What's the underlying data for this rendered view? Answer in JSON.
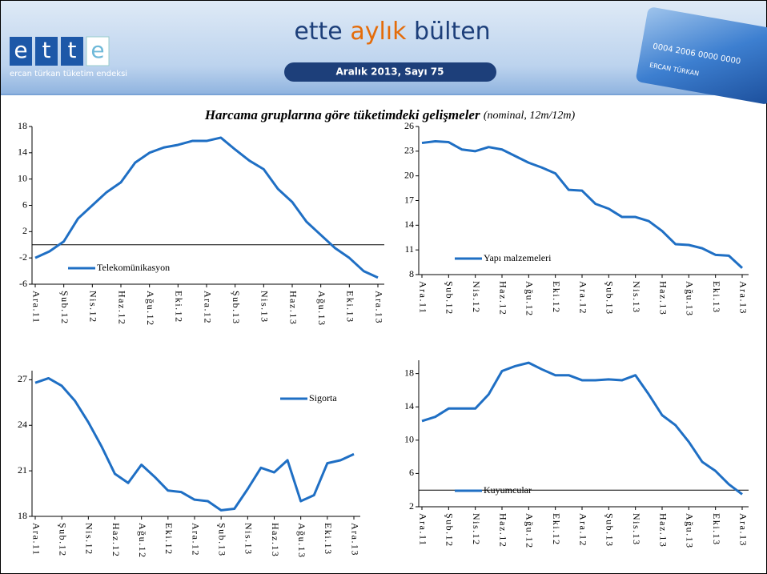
{
  "header": {
    "logo_letters": [
      "e",
      "t",
      "t",
      "e"
    ],
    "logo_caption": "ercan türkan tüketim endeksi",
    "title_parts": [
      "ette",
      "aylık",
      "bülten"
    ],
    "issue": "Aralık 2013, Sayı 75",
    "card_number": "0004 2006 0000 0000",
    "card_name": "ERCAN TÜRKAN"
  },
  "title": "Harcama gruplarına göre tüketimdeki gelişmeler",
  "subtitle": "(nominal, 12m/12m)",
  "chart_data": [
    {
      "type": "line",
      "legend": "lower left",
      "hline": 0,
      "categories": [
        "Ara.11",
        null,
        "Şub.12",
        null,
        "Nis.12",
        null,
        "Haz.12",
        null,
        "Ağu.12",
        null,
        "Eki.12",
        null,
        "Ara.12",
        null,
        "Şub.13",
        null,
        "Nis.13",
        null,
        "Haz.13",
        null,
        "Ağu.13",
        null,
        "Eki.13",
        null,
        "Ara.13"
      ],
      "series": [
        {
          "name": "Telekomünikasyon",
          "color": "#1f6fc4",
          "values": [
            -2,
            -1,
            0.5,
            4,
            6,
            8,
            9.5,
            12.5,
            14,
            14.8,
            15.2,
            15.8,
            15.8,
            16.3,
            14.5,
            12.8,
            11.5,
            8.5,
            6.5,
            3.5,
            1.5,
            -0.5,
            -2,
            -4,
            -5
          ]
        }
      ],
      "ylim": [
        -6,
        18
      ],
      "yticks": [
        -6,
        -2,
        2,
        6,
        10,
        14,
        18
      ]
    },
    {
      "type": "line",
      "legend": "lower left",
      "categories": [
        "Ara.11",
        null,
        "Şub.12",
        null,
        "Nis.12",
        null,
        "Haz.12",
        null,
        "Ağu.12",
        null,
        "Eki.12",
        null,
        "Ara.12",
        null,
        "Şub.13",
        null,
        "Nis.13",
        null,
        "Haz.13",
        null,
        "Ağu.13",
        null,
        "Eki.13",
        null,
        "Ara.13"
      ],
      "series": [
        {
          "name": "Yapı malzemeleri",
          "color": "#1f6fc4",
          "values": [
            24,
            24.2,
            24.1,
            23.2,
            23,
            23.5,
            23.2,
            22.4,
            21.6,
            21,
            20.3,
            18.3,
            18.2,
            16.6,
            16,
            15,
            15,
            14.5,
            13.3,
            11.7,
            11.6,
            11.2,
            10.4,
            10.3,
            8.8
          ]
        }
      ],
      "ylim": [
        8,
        26
      ],
      "yticks": [
        8,
        11,
        14,
        17,
        20,
        23,
        26
      ]
    },
    {
      "type": "line",
      "legend": "upper right",
      "categories": [
        "Ara.11",
        null,
        "Şub.12",
        null,
        "Nis.12",
        null,
        "Haz.12",
        null,
        "Ağu.12",
        null,
        "Eki.12",
        null,
        "Ara.12",
        null,
        "Şub.13",
        null,
        "Nis.13",
        null,
        "Haz.13",
        null,
        "Ağu.13",
        null,
        "Eki.13",
        null,
        "Ara.13"
      ],
      "series": [
        {
          "name": "Sigorta",
          "color": "#1f6fc4",
          "values": [
            26.8,
            27.1,
            26.6,
            25.6,
            24.2,
            22.6,
            20.8,
            20.2,
            21.4,
            20.6,
            19.7,
            19.6,
            19.1,
            19.0,
            18.4,
            18.5,
            19.8,
            21.2,
            20.9,
            21.7,
            19.0,
            19.4,
            21.5,
            21.7,
            22.1
          ]
        }
      ],
      "ylim": [
        18,
        27.6
      ],
      "yticks": [
        18,
        21,
        24,
        27
      ]
    },
    {
      "type": "line",
      "legend": "lower left",
      "hline": 4,
      "categories": [
        "Ara.11",
        null,
        "Şub.12",
        null,
        "Nis.12",
        null,
        "Haz.12",
        null,
        "Ağu.12",
        null,
        "Eki.12",
        null,
        "Ara.12",
        null,
        "Şub.13",
        null,
        "Nis.13",
        null,
        "Haz.13",
        null,
        "Ağu.13",
        null,
        "Eki.13",
        null,
        "Ara.13"
      ],
      "series": [
        {
          "name": "Kuyumcular",
          "color": "#1f6fc4",
          "values": [
            12.3,
            12.8,
            13.8,
            13.8,
            13.8,
            15.5,
            18.3,
            18.9,
            19.3,
            18.5,
            17.8,
            17.8,
            17.2,
            17.2,
            17.3,
            17.2,
            17.8,
            15.5,
            13,
            11.8,
            9.8,
            7.4,
            6.3,
            4.7,
            3.5
          ]
        }
      ],
      "ylim": [
        2,
        19.6
      ],
      "yticks": [
        2,
        6,
        10,
        14,
        18
      ]
    }
  ]
}
